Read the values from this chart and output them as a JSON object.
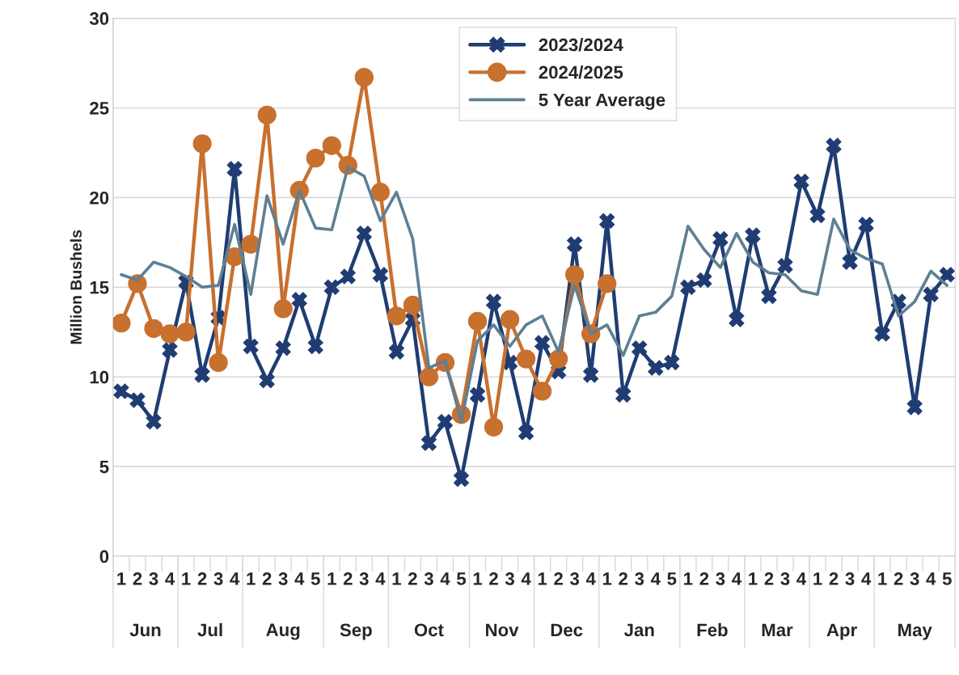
{
  "chart_data": {
    "type": "line",
    "ylabel": "Million Bushels",
    "categories": [
      "1",
      "2",
      "3",
      "4",
      "1",
      "2",
      "3",
      "4",
      "1",
      "2",
      "3",
      "4",
      "5",
      "1",
      "2",
      "3",
      "4",
      "1",
      "2",
      "3",
      "4",
      "5",
      "1",
      "2",
      "3",
      "4",
      "1",
      "2",
      "3",
      "4",
      "1",
      "2",
      "3",
      "4",
      "5",
      "1",
      "2",
      "3",
      "4",
      "1",
      "2",
      "3",
      "4",
      "1",
      "2",
      "3",
      "4",
      "1",
      "2",
      "3",
      "4",
      "5"
    ],
    "annotations": [
      "Jun",
      "Jul",
      "Aug",
      "Sep",
      "Oct",
      "Nov",
      "Dec",
      "Jan",
      "Feb",
      "Mar",
      "Apr",
      "May"
    ],
    "series": [
      {
        "name": "2023/2024",
        "color": "#1f3d73",
        "marker": "cross",
        "values": [
          9.2,
          8.7,
          7.5,
          11.5,
          15.3,
          10.1,
          13.3,
          21.6,
          11.7,
          9.8,
          11.6,
          14.3,
          11.7,
          15.0,
          15.6,
          18.0,
          15.7,
          11.4,
          13.2,
          6.3,
          7.5,
          4.3,
          9.0,
          14.2,
          10.8,
          6.9,
          11.9,
          10.3,
          17.4,
          10.1,
          18.7,
          9.0,
          11.6,
          10.5,
          10.8,
          15.0,
          15.4,
          17.7,
          13.2,
          17.9,
          14.5,
          16.2,
          20.9,
          19.0,
          22.9,
          16.4,
          18.5,
          12.4,
          14.2,
          8.3,
          14.6,
          15.7
        ]
      },
      {
        "name": "2024/2025",
        "color": "#c8702e",
        "marker": "circle",
        "values": [
          13.0,
          15.2,
          12.7,
          12.4,
          12.5,
          23.0,
          10.8,
          16.7,
          17.4,
          24.6,
          13.8,
          20.4,
          22.2,
          22.9,
          21.8,
          26.7,
          20.3,
          13.4,
          14.0,
          10.0,
          10.8,
          7.9,
          13.1,
          7.2,
          13.2,
          11.0,
          9.2,
          11.0,
          15.7,
          12.4,
          15.2,
          null,
          null,
          null,
          null,
          null,
          null,
          null,
          null,
          null,
          null,
          null,
          null,
          null,
          null,
          null,
          null,
          null,
          null,
          null,
          null,
          null
        ]
      },
      {
        "name": "5 Year Average",
        "color": "#5e7f94",
        "marker": "none",
        "values": [
          15.7,
          15.4,
          16.4,
          16.1,
          15.6,
          15.0,
          15.1,
          18.5,
          14.6,
          20.1,
          17.4,
          20.4,
          18.3,
          18.2,
          21.7,
          21.2,
          18.7,
          20.3,
          17.7,
          10.5,
          10.9,
          7.5,
          12.0,
          12.9,
          11.7,
          12.9,
          13.4,
          11.4,
          15.1,
          12.4,
          12.9,
          11.2,
          13.4,
          13.6,
          14.5,
          18.4,
          17.1,
          16.1,
          18.0,
          16.4,
          15.8,
          15.7,
          14.8,
          14.6,
          18.8,
          17.1,
          16.6,
          16.3,
          13.4,
          14.2,
          15.9,
          15.1
        ]
      }
    ],
    "ylim": [
      0,
      30
    ],
    "yticks": [
      0,
      5,
      10,
      15,
      20,
      25,
      30
    ],
    "grid": "y",
    "legend": "top"
  }
}
